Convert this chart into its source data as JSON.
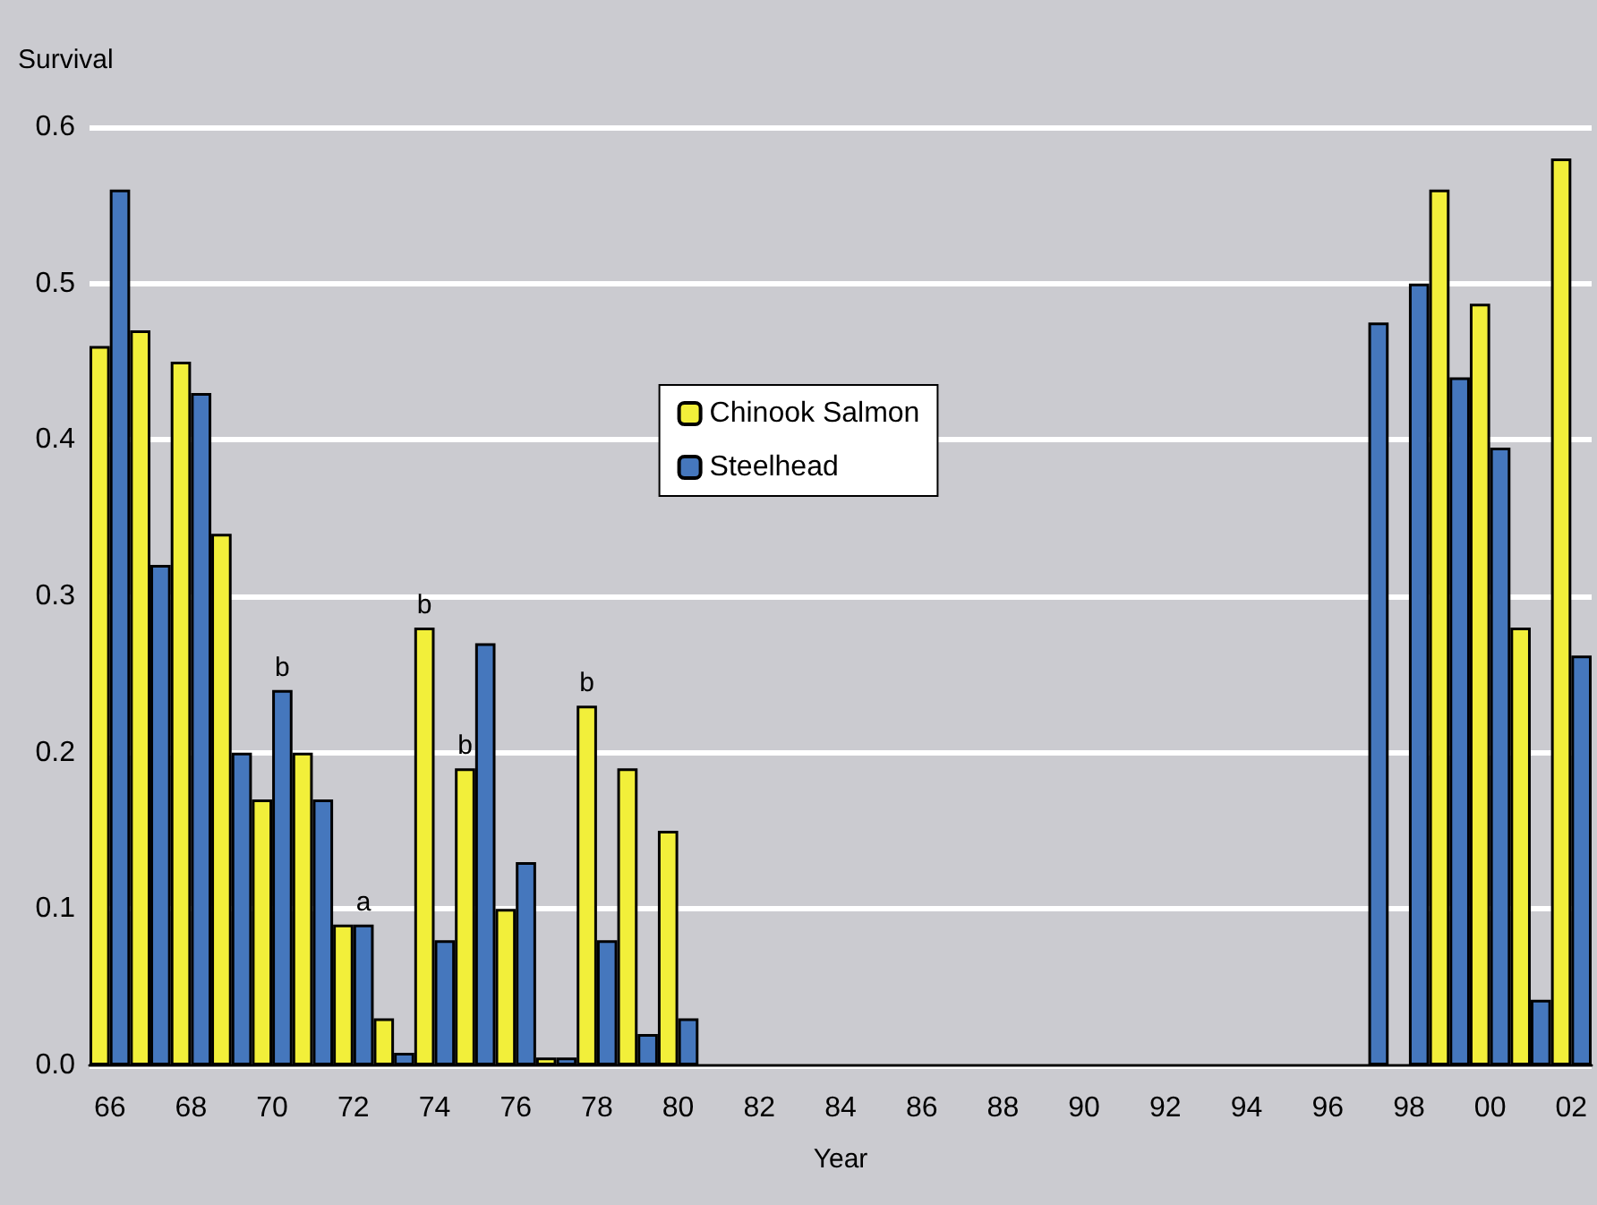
{
  "chart_data": {
    "type": "bar",
    "xlabel": "Year",
    "ylabel": "Survival",
    "categories": [
      "66",
      null,
      "68",
      null,
      "70",
      null,
      "72",
      null,
      "74",
      null,
      "76",
      null,
      "78",
      null,
      "80",
      null,
      "82",
      null,
      "84",
      null,
      "86",
      null,
      "88",
      null,
      "90",
      null,
      "92",
      null,
      "94",
      null,
      "96",
      null,
      "98",
      null,
      "00",
      null,
      "02"
    ],
    "series": [
      {
        "name": "Chinook Salmon",
        "color": "#f2ef3a",
        "values": [
          0.46,
          0.47,
          0.45,
          0.34,
          0.17,
          0.2,
          0.09,
          0.03,
          0.28,
          0.19,
          0.1,
          0.005,
          0.23,
          0.19,
          0.15,
          null,
          null,
          null,
          null,
          null,
          null,
          null,
          null,
          null,
          null,
          null,
          null,
          null,
          null,
          null,
          null,
          null,
          null,
          0.56,
          0.487,
          0.28,
          0.58
        ],
        "value_labels": [
          null,
          null,
          null,
          null,
          null,
          null,
          null,
          null,
          "b",
          "b",
          null,
          null,
          "b",
          null,
          null,
          null,
          null,
          null,
          null,
          null,
          null,
          null,
          null,
          null,
          null,
          null,
          null,
          null,
          null,
          null,
          null,
          null,
          null,
          null,
          null,
          null,
          null
        ]
      },
      {
        "name": "Steelhead",
        "color": "#4577bd",
        "values": [
          0.56,
          0.32,
          0.43,
          0.2,
          0.24,
          0.17,
          0.09,
          0.008,
          0.08,
          0.27,
          0.13,
          0.005,
          0.08,
          0.02,
          0.03,
          null,
          null,
          null,
          null,
          null,
          null,
          null,
          null,
          null,
          null,
          null,
          null,
          null,
          null,
          null,
          null,
          0.475,
          0.5,
          0.44,
          0.395,
          0.042,
          0.262
        ],
        "value_labels": [
          null,
          null,
          null,
          null,
          "b",
          null,
          "a",
          null,
          null,
          null,
          null,
          null,
          null,
          null,
          null,
          null,
          null,
          null,
          null,
          null,
          null,
          null,
          null,
          null,
          null,
          null,
          null,
          null,
          null,
          null,
          null,
          null,
          null,
          null,
          null,
          null,
          null
        ]
      }
    ],
    "ylim": [
      0,
      0.6
    ],
    "yticks": [
      {
        "value": 0,
        "label": "0.0"
      },
      {
        "value": 0.1,
        "label": "0.1"
      },
      {
        "value": 0.2,
        "label": "0.2"
      },
      {
        "value": 0.3,
        "label": "0.3"
      },
      {
        "value": 0.4,
        "label": "0.4"
      },
      {
        "value": 0.5,
        "label": "0.5"
      },
      {
        "value": 0.6,
        "label": "0.6"
      }
    ],
    "grid": "y",
    "legend": "center"
  }
}
